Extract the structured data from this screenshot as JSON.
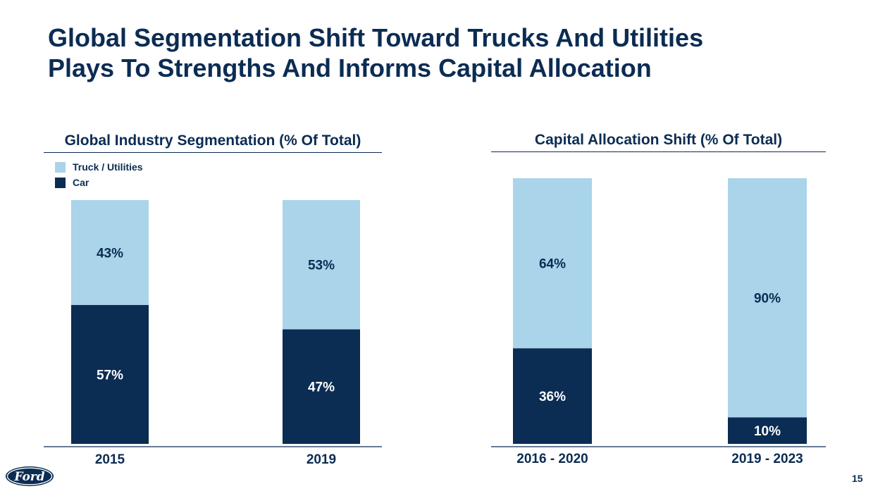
{
  "slide": {
    "title_lines": [
      "Global Segmentation Shift Toward Trucks And Utilities",
      "Plays To Strengths And Informs Capital Allocation"
    ],
    "page_number": "15",
    "logo_text": "Ford"
  },
  "colors": {
    "car": "#0b2c53",
    "truck": "#a9d4ea",
    "text": "#0b2c53",
    "label_on_dark": "#ffffff"
  },
  "legend": {
    "truck_label": "Truck / Utilities",
    "car_label": "Car"
  },
  "chart_data": [
    {
      "type": "bar",
      "stacked": true,
      "title": "Global Industry Segmentation (% Of Total)",
      "categories": [
        "2015",
        "2019"
      ],
      "ylim": [
        0,
        100
      ],
      "series": [
        {
          "name": "Car",
          "values": [
            57,
            47
          ],
          "labels": [
            "57%",
            "47%"
          ]
        },
        {
          "name": "Truck / Utilities",
          "values": [
            43,
            53
          ],
          "labels": [
            "43%",
            "53%"
          ]
        }
      ],
      "legend": "top-left"
    },
    {
      "type": "bar",
      "stacked": true,
      "title": "Capital Allocation Shift (% Of Total)",
      "categories": [
        "2016 - 2020",
        "2019 - 2023"
      ],
      "ylim": [
        0,
        100
      ],
      "series": [
        {
          "name": "Car",
          "values": [
            36,
            10
          ],
          "labels": [
            "36%",
            "10%"
          ]
        },
        {
          "name": "Truck / Utilities",
          "values": [
            64,
            90
          ],
          "labels": [
            "64%",
            "90%"
          ]
        }
      ]
    }
  ]
}
